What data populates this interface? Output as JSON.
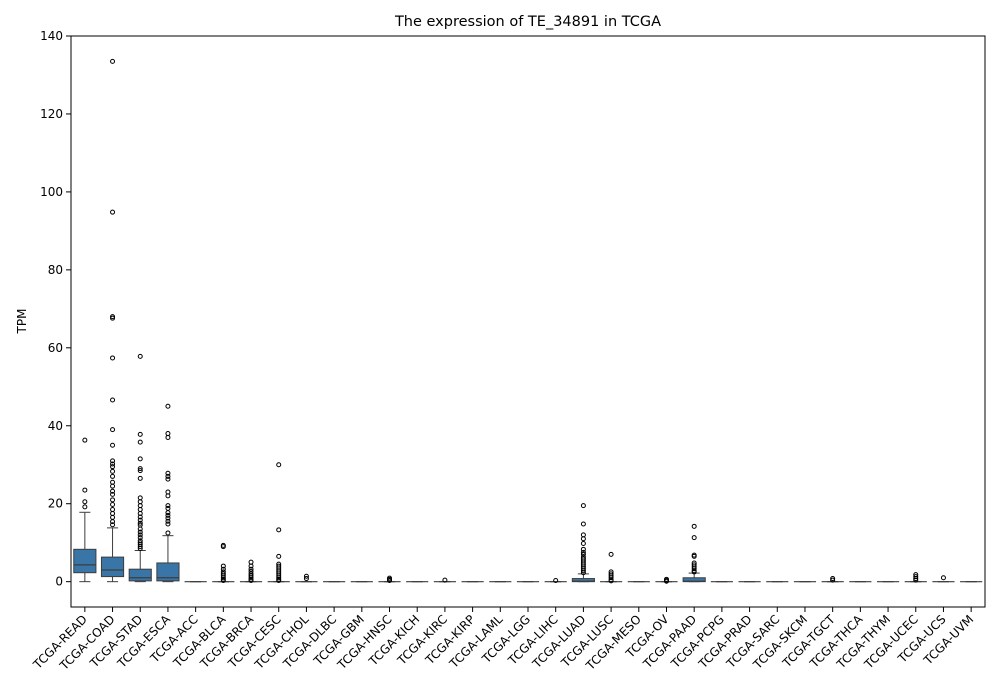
{
  "chart_data": {
    "type": "box",
    "title": "The expression of TE_34891 in TCGA",
    "xlabel": "",
    "ylabel": "TPM",
    "ylim": [
      -6.5,
      140
    ],
    "yticks": [
      0,
      20,
      40,
      60,
      80,
      100,
      120,
      140
    ],
    "grid": false,
    "box_color": "#3a75a8",
    "categories": [
      "TCGA-READ",
      "TCGA-COAD",
      "TCGA-STAD",
      "TCGA-ESCA",
      "TCGA-ACC",
      "TCGA-BLCA",
      "TCGA-BRCA",
      "TCGA-CESC",
      "TCGA-CHOL",
      "TCGA-DLBC",
      "TCGA-GBM",
      "TCGA-HNSC",
      "TCGA-KICH",
      "TCGA-KIRC",
      "TCGA-KIRP",
      "TCGA-LAML",
      "TCGA-LGG",
      "TCGA-LIHC",
      "TCGA-LUAD",
      "TCGA-LUSC",
      "TCGA-MESO",
      "TCGA-OV",
      "TCGA-PAAD",
      "TCGA-PCPG",
      "TCGA-PRAD",
      "TCGA-SARC",
      "TCGA-SKCM",
      "TCGA-TGCT",
      "TCGA-THCA",
      "TCGA-THYM",
      "TCGA-UCEC",
      "TCGA-UCS",
      "TCGA-UVM"
    ],
    "boxes": [
      {
        "min": 0,
        "q1": 2.3,
        "median": 4.3,
        "q3": 8.3,
        "max": 17.8,
        "outliers": [
          36.3,
          23.5,
          20.5,
          19.2
        ]
      },
      {
        "min": 0,
        "q1": 1.3,
        "median": 3.0,
        "q3": 6.3,
        "max": 13.8,
        "outliers": [
          133.5,
          94.8,
          68.0,
          67.6,
          57.4,
          46.6,
          39.0,
          35.0,
          31.0,
          30.2,
          29.5,
          28.3,
          27.0,
          25.5,
          24.5,
          23.2,
          22.4,
          21.0,
          19.8,
          18.5,
          17.5,
          16.5,
          15.4,
          14.6
        ]
      },
      {
        "min": 0,
        "q1": 0.2,
        "median": 1.0,
        "q3": 3.2,
        "max": 8.0,
        "outliers": [
          57.8,
          37.8,
          35.8,
          31.5,
          29.0,
          28.5,
          26.5,
          21.5,
          20.5,
          19.5,
          18.5,
          17.5,
          16.6,
          15.8,
          15.0,
          14.5,
          13.5,
          12.7,
          12.0,
          11.3,
          10.5,
          10.0,
          9.5,
          9.0,
          8.5
        ]
      },
      {
        "min": 0,
        "q1": 0.2,
        "median": 1.0,
        "q3": 4.8,
        "max": 11.8,
        "outliers": [
          45.0,
          38.0,
          37.0,
          27.8,
          27.0,
          26.3,
          23.0,
          22.0,
          19.5,
          18.8,
          17.7,
          17.0,
          16.3,
          15.5,
          14.8,
          12.5
        ]
      },
      {
        "min": 0,
        "q1": 0,
        "median": 0,
        "q3": 0,
        "max": 0,
        "outliers": []
      },
      {
        "min": 0,
        "q1": 0,
        "median": 0,
        "q3": 0,
        "max": 0,
        "outliers": [
          9.3,
          9.0,
          4.0,
          3.2,
          2.5,
          2.0,
          1.5,
          1.0,
          0.6,
          0.3
        ]
      },
      {
        "min": 0,
        "q1": 0,
        "median": 0,
        "q3": 0,
        "max": 0,
        "outliers": [
          5.0,
          4.0,
          3.2,
          2.6,
          2.0,
          1.5,
          1.0,
          0.6,
          0.3
        ]
      },
      {
        "min": 0,
        "q1": 0,
        "median": 0,
        "q3": 0,
        "max": 0,
        "outliers": [
          30.0,
          13.3,
          6.5,
          4.5,
          4.0,
          3.5,
          3.0,
          2.5,
          2.0,
          1.5,
          1.0,
          0.6,
          0.3
        ]
      },
      {
        "min": 0,
        "q1": 0,
        "median": 0,
        "q3": 0,
        "max": 0,
        "outliers": [
          1.4,
          0.8
        ]
      },
      {
        "min": 0,
        "q1": 0,
        "median": 0,
        "q3": 0,
        "max": 0,
        "outliers": []
      },
      {
        "min": 0,
        "q1": 0,
        "median": 0,
        "q3": 0,
        "max": 0,
        "outliers": []
      },
      {
        "min": 0,
        "q1": 0,
        "median": 0,
        "q3": 0,
        "max": 0,
        "outliers": [
          0.9,
          0.6,
          0.3
        ]
      },
      {
        "min": 0,
        "q1": 0,
        "median": 0,
        "q3": 0,
        "max": 0,
        "outliers": []
      },
      {
        "min": 0,
        "q1": 0,
        "median": 0,
        "q3": 0,
        "max": 0,
        "outliers": [
          0.4
        ]
      },
      {
        "min": 0,
        "q1": 0,
        "median": 0,
        "q3": 0,
        "max": 0,
        "outliers": []
      },
      {
        "min": 0,
        "q1": 0,
        "median": 0,
        "q3": 0,
        "max": 0,
        "outliers": []
      },
      {
        "min": 0,
        "q1": 0,
        "median": 0,
        "q3": 0,
        "max": 0,
        "outliers": []
      },
      {
        "min": 0,
        "q1": 0,
        "median": 0,
        "q3": 0,
        "max": 0,
        "outliers": [
          0.3
        ]
      },
      {
        "min": 0,
        "q1": 0,
        "median": 0.1,
        "q3": 0.8,
        "max": 2.0,
        "outliers": [
          19.5,
          14.8,
          12.0,
          11.0,
          9.8,
          8.3,
          7.5,
          7.0,
          6.3,
          5.8,
          5.3,
          4.8,
          4.3,
          3.8,
          3.3,
          2.8,
          2.3
        ]
      },
      {
        "min": 0,
        "q1": 0,
        "median": 0,
        "q3": 0,
        "max": 0,
        "outliers": [
          7.0,
          2.5,
          2.0,
          1.5,
          1.0,
          0.5,
          0.2
        ]
      },
      {
        "min": 0,
        "q1": 0,
        "median": 0,
        "q3": 0,
        "max": 0,
        "outliers": []
      },
      {
        "min": 0,
        "q1": 0,
        "median": 0,
        "q3": 0,
        "max": 0,
        "outliers": [
          0.6,
          0.3,
          0.1
        ]
      },
      {
        "min": 0,
        "q1": 0,
        "median": 0.1,
        "q3": 1.0,
        "max": 2.2,
        "outliers": [
          14.2,
          11.3,
          6.8,
          6.5,
          4.8,
          4.3,
          3.8,
          3.3,
          2.8,
          2.5
        ]
      },
      {
        "min": 0,
        "q1": 0,
        "median": 0,
        "q3": 0,
        "max": 0,
        "outliers": []
      },
      {
        "min": 0,
        "q1": 0,
        "median": 0,
        "q3": 0,
        "max": 0,
        "outliers": []
      },
      {
        "min": 0,
        "q1": 0,
        "median": 0,
        "q3": 0,
        "max": 0,
        "outliers": []
      },
      {
        "min": 0,
        "q1": 0,
        "median": 0,
        "q3": 0,
        "max": 0,
        "outliers": []
      },
      {
        "min": 0,
        "q1": 0,
        "median": 0,
        "q3": 0,
        "max": 0,
        "outliers": [
          0.8,
          0.4
        ]
      },
      {
        "min": 0,
        "q1": 0,
        "median": 0,
        "q3": 0,
        "max": 0,
        "outliers": []
      },
      {
        "min": 0,
        "q1": 0,
        "median": 0,
        "q3": 0,
        "max": 0,
        "outliers": []
      },
      {
        "min": 0,
        "q1": 0,
        "median": 0,
        "q3": 0,
        "max": 0,
        "outliers": [
          1.8,
          1.3,
          0.8,
          0.4
        ]
      },
      {
        "min": 0,
        "q1": 0,
        "median": 0,
        "q3": 0,
        "max": 0,
        "outliers": [
          1.0
        ]
      },
      {
        "min": 0,
        "q1": 0,
        "median": 0,
        "q3": 0,
        "max": 0,
        "outliers": []
      }
    ]
  }
}
